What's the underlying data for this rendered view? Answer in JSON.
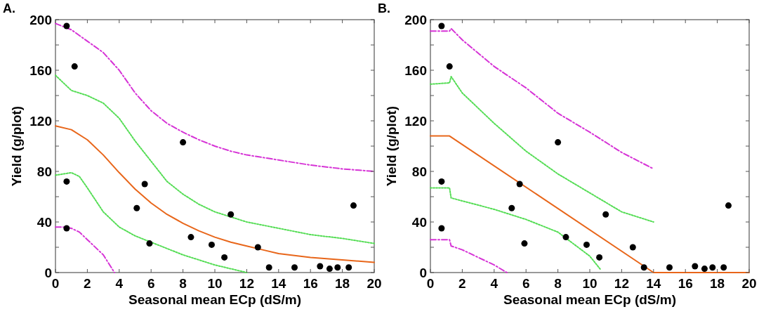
{
  "chart_data": [
    {
      "type": "line",
      "title": "A.",
      "xlabel": "Seasonal mean ECp (dS/m)",
      "ylabel": "Yield (g/plot)",
      "xlim": [
        0,
        20
      ],
      "ylim": [
        0,
        200
      ],
      "xticks": [
        0,
        2,
        4,
        6,
        8,
        10,
        12,
        14,
        16,
        18,
        20
      ],
      "yticks": [
        0,
        {
          "value": 20,
          "label": null
        },
        40,
        {
          "value": 60,
          "label": null
        },
        80,
        {
          "value": 100,
          "label": null
        },
        120,
        {
          "value": 140,
          "label": null
        },
        160,
        {
          "value": 180,
          "label": null
        },
        200
      ],
      "grid": false,
      "series": [
        {
          "type": "line",
          "color": "#d633d6",
          "line_style": "dashed",
          "marker": "none",
          "x": [
            0,
            1,
            2,
            3,
            4,
            5,
            6,
            7,
            8,
            9,
            10,
            11,
            12,
            14,
            16,
            18,
            20
          ],
          "values": [
            197,
            192,
            183,
            174,
            160,
            142,
            128,
            118,
            111,
            105,
            100,
            96,
            93,
            89,
            85,
            82,
            80
          ]
        },
        {
          "type": "line",
          "color": "#55dd55",
          "line_style": "dotted",
          "marker": "none",
          "x": [
            0,
            1,
            2,
            3,
            4,
            5,
            6,
            7,
            8,
            9,
            10,
            11,
            12,
            14,
            16,
            18,
            20
          ],
          "values": [
            156,
            144,
            140,
            134,
            122,
            104,
            88,
            72,
            62,
            54,
            48,
            44,
            40,
            35,
            30,
            27,
            23
          ]
        },
        {
          "color": "#e8661a",
          "line_style": "solid",
          "marker": "none",
          "x": [
            0,
            1,
            2,
            3,
            4,
            5,
            6,
            7,
            8,
            9,
            10,
            11,
            12,
            13,
            14,
            16,
            18,
            20
          ],
          "values": [
            116,
            113,
            105,
            93,
            79,
            66,
            55,
            46,
            39,
            33,
            28,
            24,
            21,
            18,
            15,
            12,
            10,
            8
          ]
        },
        {
          "type": "line",
          "color": "#55dd55",
          "line_style": "dotted",
          "marker": "none",
          "x": [
            0,
            0.5,
            1,
            1.5,
            2,
            3,
            4,
            5,
            6,
            7,
            8,
            9,
            10,
            11,
            12
          ],
          "values": [
            77,
            78,
            79,
            76,
            67,
            48,
            36,
            29,
            24,
            19,
            14,
            10,
            6,
            3,
            0
          ]
        },
        {
          "type": "line",
          "color": "#d633d6",
          "line_style": "dashed",
          "marker": "none",
          "x": [
            0,
            0.5,
            1,
            1.5,
            2,
            3,
            3.7
          ],
          "values": [
            36,
            36,
            35,
            32,
            26,
            14,
            0
          ]
        },
        {
          "type": "scatter",
          "color": "#000000",
          "marker": "circle",
          "x": [
            0.7,
            1.2,
            0.7,
            0.7,
            5.1,
            5.6,
            5.9,
            8.0,
            8.5,
            9.8,
            10.6,
            11.0,
            12.7,
            13.4,
            15.0,
            16.6,
            17.2,
            17.7,
            18.4,
            18.7
          ],
          "values": [
            195,
            163,
            72,
            35,
            51,
            70,
            23,
            103,
            28,
            22,
            12,
            46,
            20,
            4,
            4,
            5,
            3,
            4,
            4,
            53
          ]
        }
      ]
    },
    {
      "type": "line",
      "title": "B.",
      "xlabel": "Seasonal mean ECp (dS/m)",
      "ylabel": "Yield (g/plot)",
      "xlim": [
        0,
        20
      ],
      "ylim": [
        0,
        200
      ],
      "xticks": [
        0,
        2,
        4,
        6,
        8,
        10,
        12,
        14,
        16,
        18,
        20
      ],
      "yticks": [
        0,
        {
          "value": 20,
          "label": null
        },
        40,
        {
          "value": 60,
          "label": null
        },
        80,
        {
          "value": 100,
          "label": null
        },
        120,
        {
          "value": 140,
          "label": null
        },
        160,
        {
          "value": 180,
          "label": null
        },
        200
      ],
      "grid": false,
      "series": [
        {
          "type": "line",
          "color": "#d633d6",
          "line_style": "dashed",
          "marker": "none",
          "x": [
            0,
            1.2,
            1.3,
            2,
            4,
            6,
            8,
            10,
            12,
            14
          ],
          "values": [
            191,
            191,
            193,
            184,
            163,
            146,
            126,
            111,
            95,
            82
          ]
        },
        {
          "type": "line",
          "color": "#55dd55",
          "line_style": "dotted",
          "marker": "none",
          "x": [
            0,
            1.2,
            1.3,
            2,
            4,
            6,
            8,
            10,
            12,
            14
          ],
          "values": [
            149,
            150,
            155,
            142,
            118,
            96,
            78,
            63,
            48,
            40
          ]
        },
        {
          "color": "#e8661a",
          "line_style": "solid",
          "marker": "none",
          "x": [
            0,
            1.2,
            14,
            20
          ],
          "values": [
            108,
            108,
            0,
            0
          ]
        },
        {
          "type": "line",
          "color": "#55dd55",
          "line_style": "dotted",
          "marker": "none",
          "x": [
            0,
            1.2,
            1.3,
            4,
            6,
            8,
            10,
            10.7
          ],
          "values": [
            67,
            67,
            59,
            50,
            42,
            32,
            13,
            2
          ]
        },
        {
          "type": "line",
          "color": "#d633d6",
          "line_style": "dashed",
          "marker": "none",
          "x": [
            0,
            1.2,
            1.3,
            2,
            4,
            4.8
          ],
          "values": [
            26,
            26,
            21,
            18,
            6,
            0
          ]
        },
        {
          "type": "scatter",
          "color": "#000000",
          "marker": "circle",
          "x": [
            0.7,
            1.2,
            0.7,
            0.7,
            5.1,
            5.6,
            5.9,
            8.0,
            8.5,
            9.8,
            10.6,
            11.0,
            12.7,
            13.4,
            15.0,
            16.6,
            17.2,
            17.7,
            18.4,
            18.7
          ],
          "values": [
            195,
            163,
            72,
            35,
            51,
            70,
            23,
            103,
            28,
            22,
            12,
            46,
            20,
            4,
            4,
            5,
            3,
            4,
            4,
            53
          ]
        }
      ]
    }
  ]
}
